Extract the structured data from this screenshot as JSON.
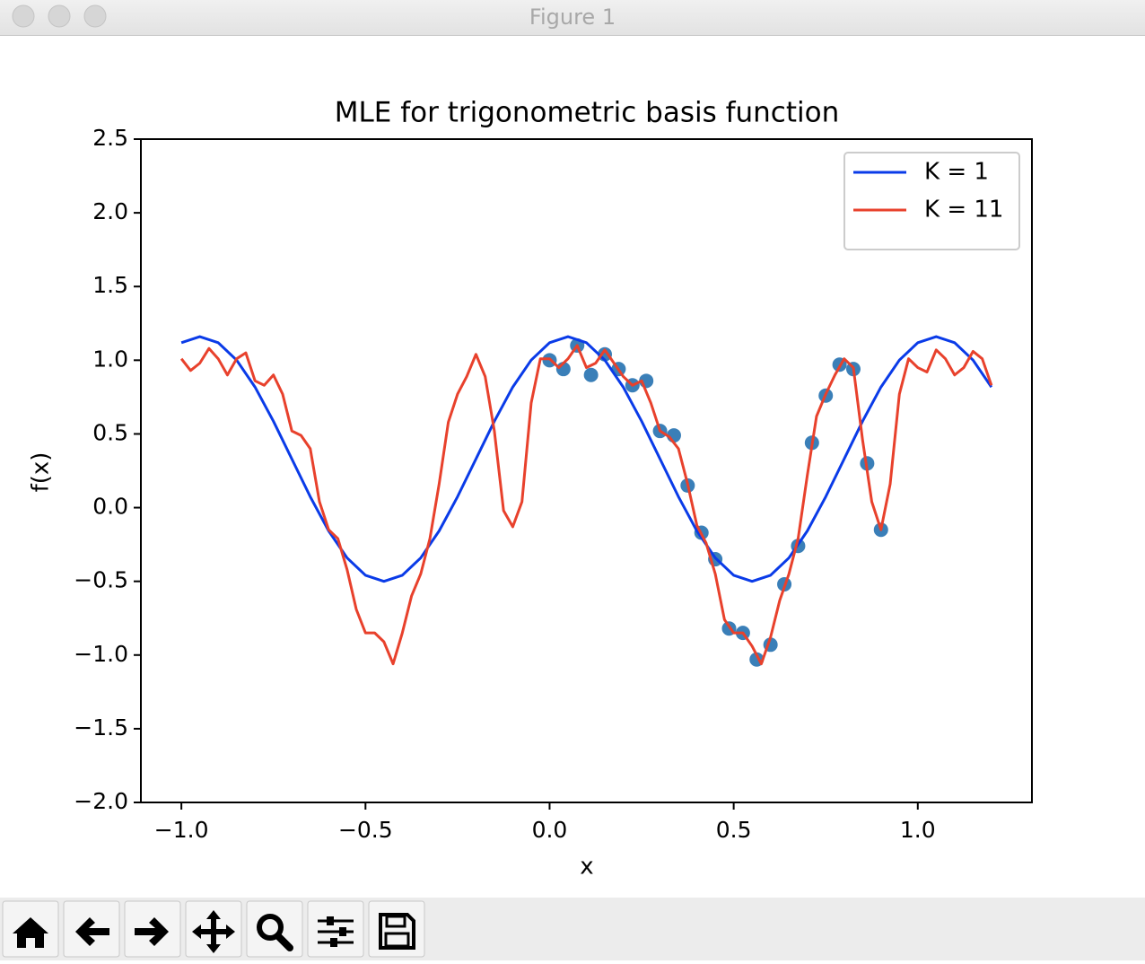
{
  "window_title": "Figure 1",
  "chart_data": {
    "type": "line",
    "title": "MLE for trigonometric basis function",
    "xlabel": "x",
    "ylabel": "f(x)",
    "xlim": [
      -1.11,
      1.31
    ],
    "ylim": [
      -2.0,
      2.5
    ],
    "xticks": [
      {
        "value": -1.0,
        "label": "−1.0"
      },
      {
        "value": -0.5,
        "label": "−0.5"
      },
      {
        "value": 0.0,
        "label": "0.0"
      },
      0.5,
      {
        "value": 1.0,
        "label": "1.0"
      }
    ],
    "yticks": [
      {
        "value": -2.0,
        "label": "−2.0"
      },
      {
        "value": -1.5,
        "label": "−1.5"
      },
      {
        "value": -1.0,
        "label": "−1.0"
      },
      {
        "value": -0.5,
        "label": "−0.5"
      },
      {
        "value": 0.0,
        "label": "0.0"
      },
      0.5,
      {
        "value": 1.0,
        "label": "1.0"
      },
      1.5,
      {
        "value": 2.0,
        "label": "2.0"
      },
      2.5
    ],
    "legend": "upper right",
    "series": [
      {
        "name": "K = 1",
        "color": "#0a3be8",
        "style": "line",
        "x": [
          -1.0,
          -0.95,
          -0.9,
          -0.85,
          -0.8,
          -0.75,
          -0.7,
          -0.65,
          -0.6,
          -0.55,
          -0.5,
          -0.45,
          -0.4,
          -0.35,
          -0.3,
          -0.25,
          -0.2,
          -0.15,
          -0.1,
          -0.05,
          0.0,
          0.05,
          0.1,
          0.15,
          0.2,
          0.25,
          0.3,
          0.35,
          0.4,
          0.45,
          0.5,
          0.55,
          0.6,
          0.65,
          0.7,
          0.75,
          0.8,
          0.85,
          0.9,
          0.95,
          1.0,
          1.05,
          1.1,
          1.15,
          1.2
        ],
        "values": [
          1.119,
          1.16,
          1.119,
          1.001,
          0.818,
          0.586,
          0.33,
          0.074,
          -0.158,
          -0.341,
          -0.459,
          -0.5,
          -0.459,
          -0.341,
          -0.158,
          0.074,
          0.33,
          0.586,
          0.818,
          1.001,
          1.119,
          1.16,
          1.119,
          1.001,
          0.818,
          0.586,
          0.33,
          0.074,
          -0.158,
          -0.341,
          -0.459,
          -0.5,
          -0.459,
          -0.341,
          -0.158,
          0.074,
          0.33,
          0.586,
          0.818,
          1.001,
          1.119,
          1.16,
          1.119,
          1.001,
          0.818
        ]
      },
      {
        "name": "K = 11",
        "color": "#e8412c",
        "style": "line",
        "x": [
          -1.0,
          -0.975,
          -0.95,
          -0.925,
          -0.9,
          -0.875,
          -0.85,
          -0.825,
          -0.8,
          -0.775,
          -0.75,
          -0.725,
          -0.7,
          -0.675,
          -0.65,
          -0.625,
          -0.6,
          -0.575,
          -0.55,
          -0.525,
          -0.5,
          -0.475,
          -0.45,
          -0.425,
          -0.4,
          -0.375,
          -0.35,
          -0.325,
          -0.3,
          -0.275,
          -0.25,
          -0.225,
          -0.2,
          -0.175,
          -0.15,
          -0.125,
          -0.1,
          -0.075,
          -0.05,
          -0.025,
          0.0,
          0.025,
          0.05,
          0.075,
          0.1,
          0.125,
          0.15,
          0.175,
          0.2,
          0.225,
          0.25,
          0.275,
          0.3,
          0.325,
          0.35,
          0.375,
          0.4,
          0.425,
          0.45,
          0.475,
          0.5,
          0.525,
          0.55,
          0.575,
          0.6,
          0.625,
          0.65,
          0.675,
          0.7,
          0.725,
          0.75,
          0.775,
          0.8,
          0.825,
          0.85,
          0.875,
          0.9,
          0.925,
          0.95,
          0.975,
          1.0,
          1.025,
          1.05,
          1.075,
          1.1,
          1.125,
          1.15,
          1.175,
          1.2
        ],
        "values": [
          1.01,
          0.93,
          0.98,
          1.08,
          1.01,
          0.9,
          1.01,
          1.05,
          0.86,
          0.83,
          0.9,
          0.77,
          0.52,
          0.49,
          0.4,
          0.04,
          -0.15,
          -0.21,
          -0.42,
          -0.69,
          -0.85,
          -0.85,
          -0.91,
          -1.06,
          -0.85,
          -0.6,
          -0.45,
          -0.21,
          0.16,
          0.58,
          0.77,
          0.89,
          1.04,
          0.89,
          0.52,
          -0.02,
          -0.13,
          0.04,
          0.71,
          1.01,
          1.01,
          0.95,
          1.01,
          1.1,
          0.95,
          0.98,
          1.07,
          0.98,
          0.89,
          0.83,
          0.86,
          0.71,
          0.52,
          0.48,
          0.4,
          0.16,
          -0.12,
          -0.24,
          -0.45,
          -0.76,
          -0.85,
          -0.85,
          -0.94,
          -1.06,
          -0.88,
          -0.63,
          -0.45,
          -0.21,
          0.22,
          0.62,
          0.77,
          0.9,
          1.01,
          0.95,
          0.46,
          0.04,
          -0.15,
          0.16,
          0.77,
          1.01,
          0.95,
          0.92,
          1.07,
          1.01,
          0.9,
          0.95,
          1.06,
          1.01,
          0.83
        ]
      },
      {
        "color": "#3a7fb8",
        "style": "scatter",
        "x": [
          0.0,
          0.0375,
          0.075,
          0.1125,
          0.15,
          0.1875,
          0.225,
          0.2625,
          0.3,
          0.3375,
          0.375,
          0.4125,
          0.45,
          0.4875,
          0.525,
          0.5625,
          0.6,
          0.6375,
          0.675,
          0.7125,
          0.75,
          0.7875,
          0.825,
          0.8625,
          0.9
        ],
        "values": [
          1.0,
          0.94,
          1.1,
          0.9,
          1.04,
          0.94,
          0.83,
          0.86,
          0.52,
          0.49,
          0.15,
          -0.17,
          -0.35,
          -0.82,
          -0.85,
          -1.03,
          -0.93,
          -0.52,
          -0.26,
          0.44,
          0.76,
          0.97,
          0.94,
          0.3,
          -0.15
        ]
      }
    ]
  }
}
